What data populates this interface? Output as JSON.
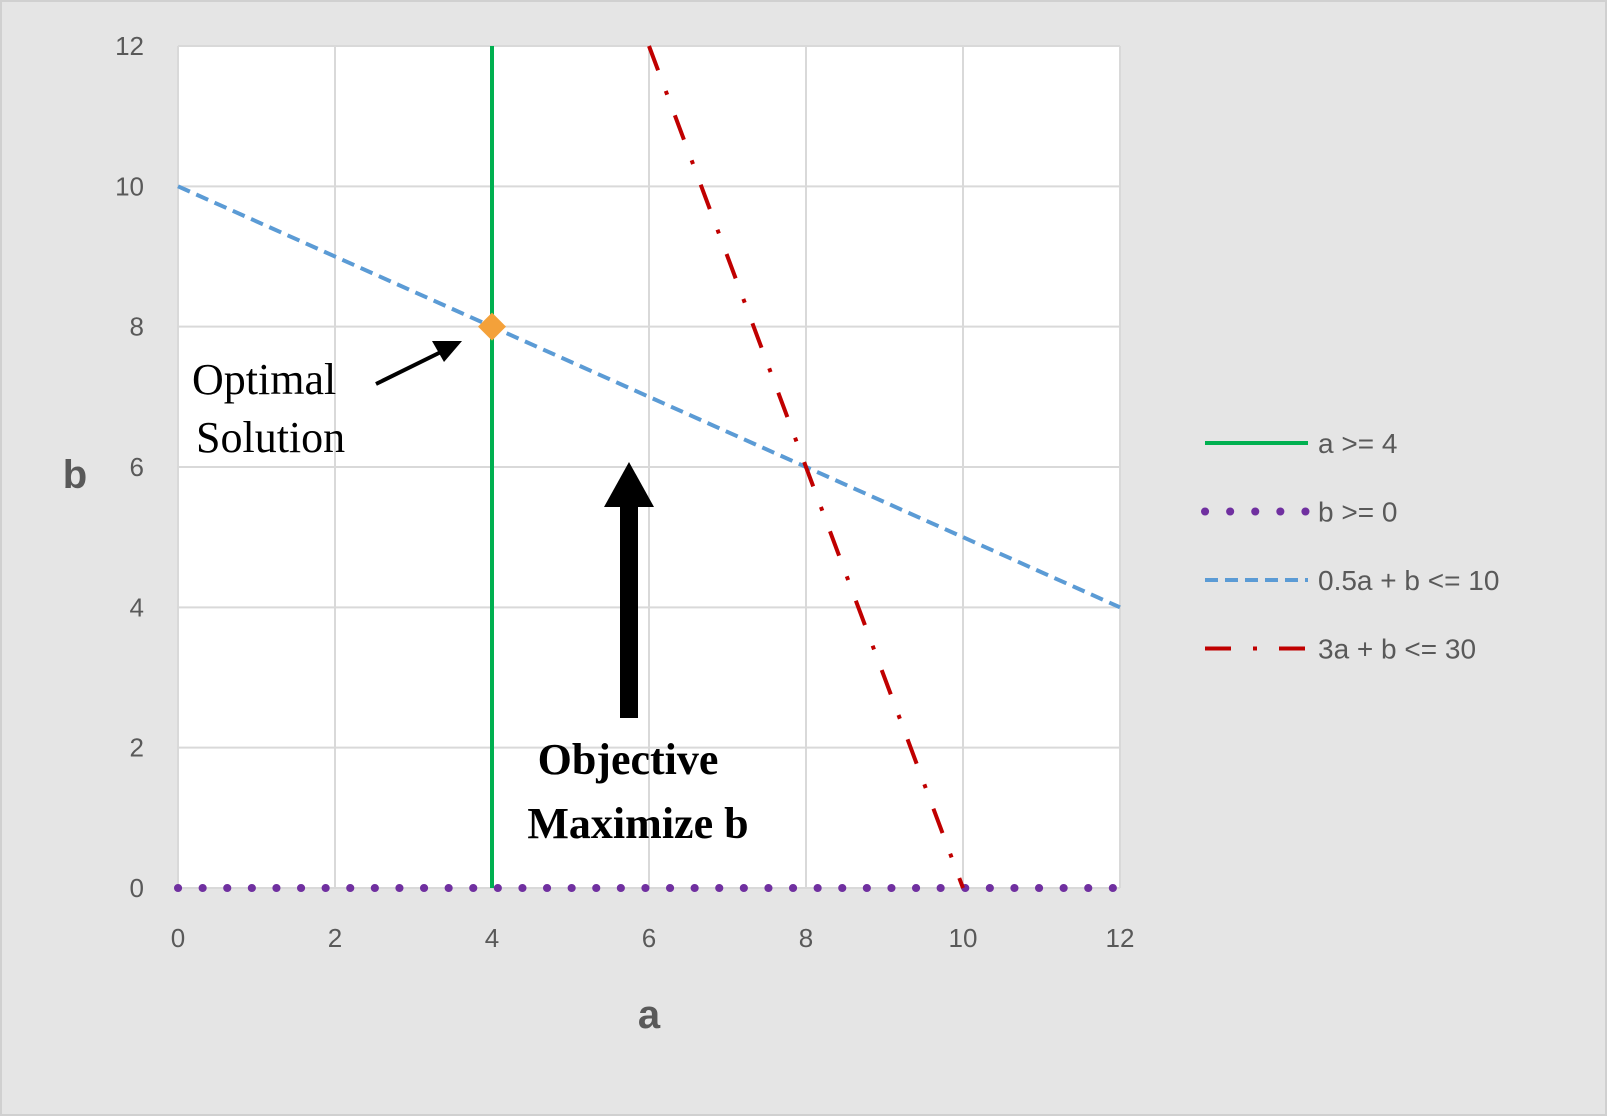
{
  "chart_data": {
    "type": "line",
    "title": "",
    "xlabel": "a",
    "ylabel": "b",
    "xlim": [
      0,
      12
    ],
    "ylim": [
      0,
      12
    ],
    "xticks": [
      0,
      2,
      4,
      6,
      8,
      10,
      12
    ],
    "yticks": [
      0,
      2,
      4,
      6,
      8,
      10,
      12
    ],
    "grid": true,
    "legend_placement": "right",
    "series": [
      {
        "name": "a >= 4",
        "color": "#00b050",
        "style": "solid",
        "points": [
          [
            4,
            0
          ],
          [
            4,
            12
          ]
        ]
      },
      {
        "name": "b >= 0",
        "color": "#7030a0",
        "style": "dotted",
        "points": [
          [
            0,
            0
          ],
          [
            12,
            0
          ]
        ]
      },
      {
        "name": "0.5a + b <= 10",
        "color": "#5b9bd5",
        "style": "dashed",
        "points": [
          [
            0,
            10
          ],
          [
            12,
            4
          ]
        ]
      },
      {
        "name": "3a + b <= 30",
        "color": "#c00000",
        "style": "dash-dot",
        "points": [
          [
            6,
            12
          ],
          [
            10,
            0
          ]
        ]
      }
    ],
    "optimal_point": {
      "a": 4,
      "b": 8,
      "color": "#f4a13a",
      "marker": "diamond"
    },
    "annotations": {
      "optimal": [
        "Optimal",
        "Solution"
      ],
      "objective": [
        "Objective",
        "Maximize b"
      ]
    }
  }
}
